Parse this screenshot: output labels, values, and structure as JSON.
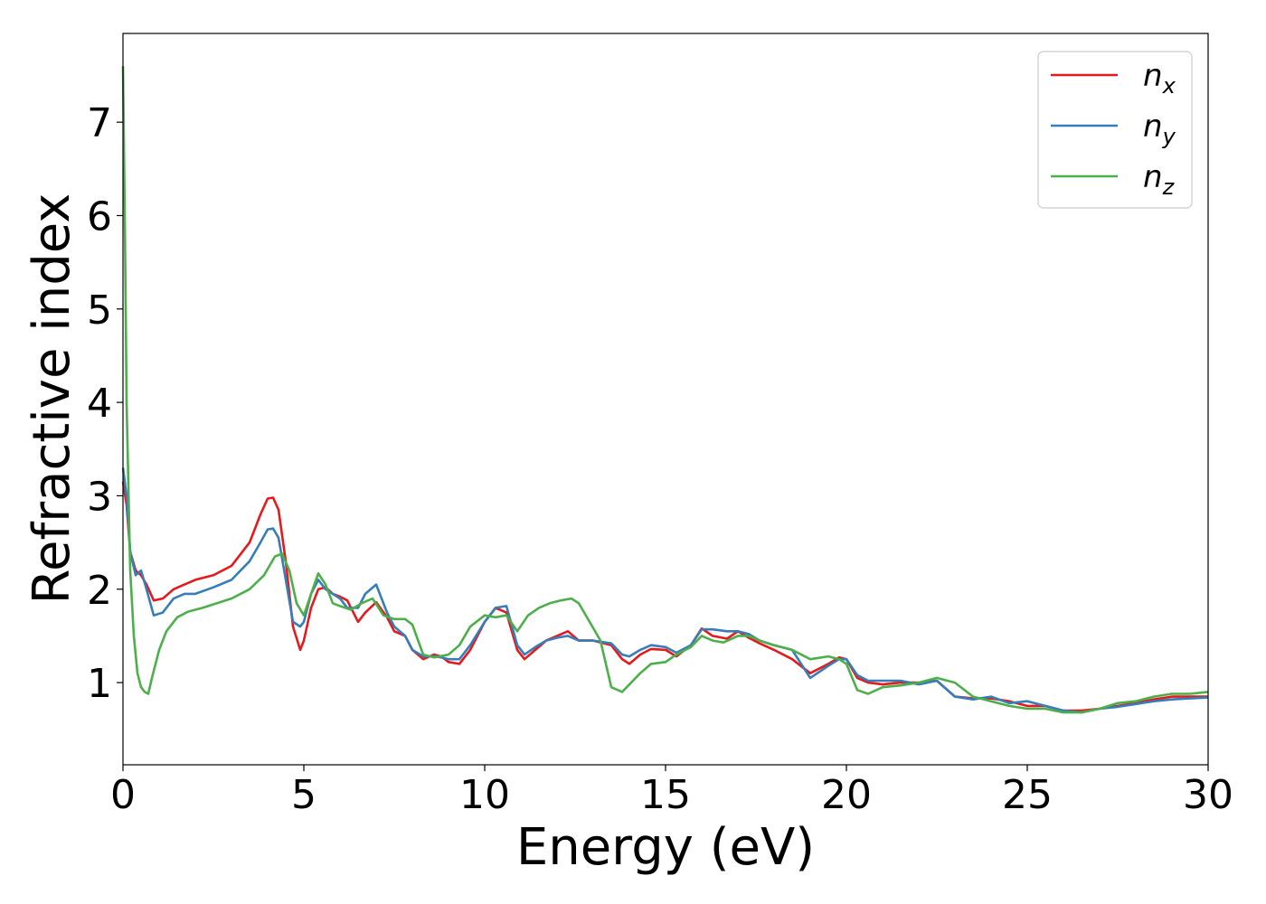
{
  "chart_data": {
    "type": "line",
    "xlabel": "Energy (eV)",
    "ylabel": "Refractive index",
    "xlim": [
      0,
      30
    ],
    "ylim": [
      0.12,
      7.95
    ],
    "xticks": [
      "0",
      "5",
      "10",
      "15",
      "20",
      "25",
      "30"
    ],
    "yticks": [
      "1",
      "2",
      "3",
      "4",
      "5",
      "6",
      "7"
    ],
    "grid": false,
    "legend": "top-right",
    "series": [
      {
        "name": "n",
        "subscript": "x",
        "color": "#e41a1c",
        "x": [
          0,
          0.1,
          0.2,
          0.35,
          0.5,
          0.65,
          0.85,
          1.1,
          1.4,
          1.7,
          2.0,
          2.5,
          3.0,
          3.5,
          3.8,
          4.0,
          4.15,
          4.3,
          4.5,
          4.7,
          4.9,
          5.0,
          5.2,
          5.4,
          5.6,
          5.8,
          6.0,
          6.2,
          6.5,
          6.7,
          7.0,
          7.3,
          7.5,
          7.8,
          8.0,
          8.3,
          8.6,
          8.8,
          9.0,
          9.3,
          9.6,
          10.0,
          10.3,
          10.6,
          10.9,
          11.1,
          11.4,
          11.7,
          12.0,
          12.3,
          12.6,
          13.0,
          13.5,
          13.8,
          14.0,
          14.3,
          14.6,
          15.0,
          15.3,
          15.7,
          16.0,
          16.3,
          16.7,
          17.0,
          17.3,
          17.6,
          18.0,
          18.5,
          19.0,
          19.5,
          19.8,
          20.0,
          20.3,
          20.6,
          21.0,
          21.5,
          22.0,
          22.5,
          23.0,
          23.5,
          24.0,
          24.5,
          25.0,
          25.5,
          26.0,
          26.5,
          27.0,
          27.5,
          28.0,
          28.5,
          29.0,
          29.5,
          30.0
        ],
        "y": [
          3.15,
          2.9,
          2.4,
          2.2,
          2.15,
          2.05,
          1.88,
          1.9,
          2.0,
          2.05,
          2.1,
          2.15,
          2.25,
          2.5,
          2.8,
          2.97,
          2.98,
          2.85,
          2.3,
          1.6,
          1.35,
          1.45,
          1.8,
          2.0,
          2.02,
          1.95,
          1.92,
          1.88,
          1.65,
          1.75,
          1.86,
          1.7,
          1.55,
          1.5,
          1.35,
          1.25,
          1.3,
          1.28,
          1.22,
          1.2,
          1.35,
          1.65,
          1.8,
          1.75,
          1.35,
          1.25,
          1.35,
          1.45,
          1.5,
          1.55,
          1.45,
          1.45,
          1.4,
          1.25,
          1.2,
          1.3,
          1.36,
          1.35,
          1.28,
          1.4,
          1.58,
          1.5,
          1.47,
          1.55,
          1.48,
          1.42,
          1.35,
          1.25,
          1.1,
          1.2,
          1.27,
          1.25,
          1.05,
          1.0,
          0.98,
          1.0,
          1.0,
          1.02,
          0.85,
          0.83,
          0.83,
          0.8,
          0.75,
          0.75,
          0.7,
          0.7,
          0.72,
          0.75,
          0.78,
          0.82,
          0.85,
          0.85,
          0.85
        ]
      },
      {
        "name": "n",
        "subscript": "y",
        "color": "#377eb8",
        "x": [
          0,
          0.1,
          0.2,
          0.35,
          0.5,
          0.65,
          0.85,
          1.1,
          1.4,
          1.7,
          2.0,
          2.5,
          3.0,
          3.5,
          3.8,
          4.0,
          4.15,
          4.3,
          4.5,
          4.7,
          4.9,
          5.0,
          5.2,
          5.4,
          5.6,
          5.8,
          6.0,
          6.2,
          6.5,
          6.7,
          7.0,
          7.3,
          7.5,
          7.8,
          8.0,
          8.3,
          8.6,
          8.8,
          9.0,
          9.3,
          9.6,
          10.0,
          10.3,
          10.6,
          10.9,
          11.1,
          11.4,
          11.7,
          12.0,
          12.3,
          12.6,
          13.0,
          13.5,
          13.8,
          14.0,
          14.3,
          14.6,
          15.0,
          15.3,
          15.7,
          16.0,
          16.3,
          16.7,
          17.0,
          17.3,
          17.6,
          18.0,
          18.5,
          19.0,
          19.5,
          19.8,
          20.0,
          20.3,
          20.6,
          21.0,
          21.5,
          22.0,
          22.5,
          23.0,
          23.5,
          24.0,
          24.5,
          25.0,
          25.5,
          26.0,
          26.5,
          27.0,
          27.5,
          28.0,
          28.5,
          29.0,
          29.5,
          30.0
        ],
        "y": [
          3.3,
          3.0,
          2.4,
          2.15,
          2.2,
          2.0,
          1.72,
          1.75,
          1.9,
          1.95,
          1.95,
          2.02,
          2.1,
          2.3,
          2.5,
          2.64,
          2.65,
          2.55,
          2.1,
          1.65,
          1.6,
          1.65,
          1.95,
          2.1,
          2.0,
          1.95,
          1.9,
          1.8,
          1.8,
          1.95,
          2.05,
          1.75,
          1.6,
          1.5,
          1.35,
          1.28,
          1.28,
          1.27,
          1.25,
          1.25,
          1.4,
          1.65,
          1.8,
          1.82,
          1.4,
          1.3,
          1.38,
          1.45,
          1.48,
          1.5,
          1.45,
          1.45,
          1.42,
          1.3,
          1.28,
          1.35,
          1.4,
          1.38,
          1.32,
          1.4,
          1.57,
          1.57,
          1.55,
          1.55,
          1.52,
          1.45,
          1.4,
          1.35,
          1.05,
          1.18,
          1.25,
          1.25,
          1.08,
          1.02,
          1.02,
          1.02,
          0.98,
          1.02,
          0.85,
          0.82,
          0.85,
          0.78,
          0.8,
          0.75,
          0.7,
          0.68,
          0.72,
          0.74,
          0.77,
          0.8,
          0.82,
          0.83,
          0.84
        ]
      },
      {
        "name": "n",
        "subscript": "z",
        "color": "#4daf4a",
        "x": [
          0,
          0.05,
          0.1,
          0.2,
          0.3,
          0.4,
          0.5,
          0.6,
          0.7,
          0.8,
          1.0,
          1.2,
          1.5,
          1.8,
          2.2,
          2.6,
          3.0,
          3.5,
          3.9,
          4.2,
          4.4,
          4.6,
          4.8,
          5.0,
          5.2,
          5.4,
          5.6,
          5.8,
          6.0,
          6.3,
          6.6,
          6.9,
          7.2,
          7.5,
          7.8,
          8.0,
          8.3,
          8.6,
          9.0,
          9.3,
          9.6,
          10.0,
          10.3,
          10.6,
          10.9,
          11.2,
          11.5,
          11.8,
          12.1,
          12.4,
          12.6,
          12.9,
          13.2,
          13.5,
          13.8,
          14.0,
          14.3,
          14.6,
          15.0,
          15.3,
          15.7,
          16.0,
          16.3,
          16.6,
          17.0,
          17.3,
          17.6,
          18.0,
          18.5,
          19.0,
          19.5,
          19.8,
          20.0,
          20.3,
          20.6,
          21.0,
          21.5,
          22.0,
          22.5,
          23.0,
          23.5,
          24.0,
          24.5,
          25.0,
          25.5,
          26.0,
          26.5,
          27.0,
          27.5,
          28.0,
          28.5,
          29.0,
          29.5,
          30.0
        ],
        "y": [
          7.6,
          6.0,
          4.0,
          2.2,
          1.5,
          1.1,
          0.95,
          0.9,
          0.88,
          1.05,
          1.35,
          1.55,
          1.7,
          1.76,
          1.8,
          1.85,
          1.9,
          2.0,
          2.15,
          2.35,
          2.38,
          2.2,
          1.85,
          1.72,
          1.95,
          2.17,
          2.05,
          1.85,
          1.82,
          1.78,
          1.85,
          1.9,
          1.72,
          1.68,
          1.68,
          1.62,
          1.3,
          1.27,
          1.3,
          1.4,
          1.6,
          1.72,
          1.7,
          1.72,
          1.55,
          1.72,
          1.8,
          1.85,
          1.88,
          1.9,
          1.85,
          1.65,
          1.45,
          0.95,
          0.9,
          0.98,
          1.1,
          1.2,
          1.22,
          1.3,
          1.38,
          1.5,
          1.45,
          1.43,
          1.5,
          1.5,
          1.45,
          1.4,
          1.35,
          1.25,
          1.28,
          1.25,
          1.2,
          0.92,
          0.88,
          0.95,
          0.97,
          1.0,
          1.05,
          1.0,
          0.85,
          0.8,
          0.75,
          0.72,
          0.72,
          0.68,
          0.68,
          0.72,
          0.78,
          0.8,
          0.85,
          0.88,
          0.88,
          0.9
        ]
      }
    ]
  }
}
